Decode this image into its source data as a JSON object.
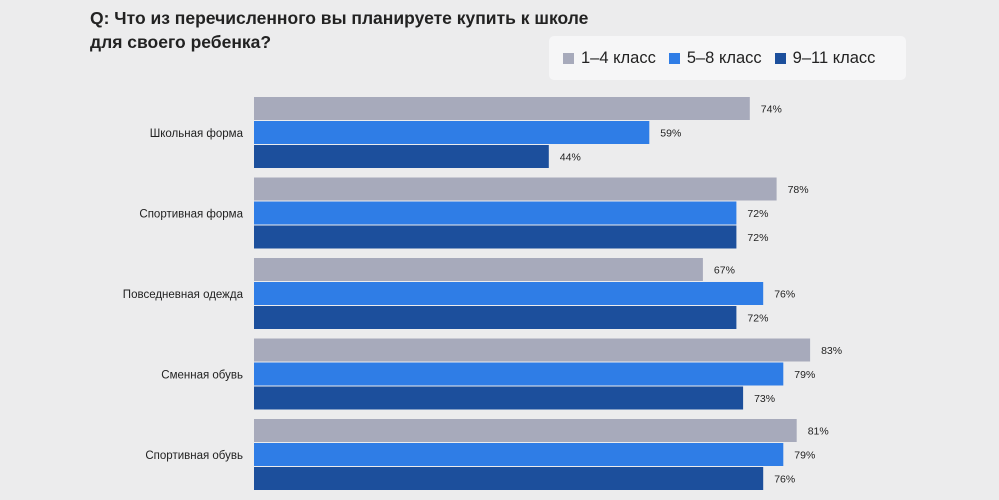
{
  "question": {
    "line1": "Q: Что из перечисленного вы планируете купить к школе",
    "line2": "для своего ребенка?"
  },
  "chart_data": {
    "type": "bar",
    "orientation": "horizontal",
    "title": "Q: Что из перечисленного вы планируете купить к школе для своего ребенка?",
    "categories": [
      "Школьная форма",
      "Спортивная форма",
      "Повседневная одежда",
      "Сменная обувь",
      "Спортивная обувь"
    ],
    "series": [
      {
        "name": "1–4 класс",
        "color": "#a7aabb",
        "values": [
          74,
          78,
          67,
          83,
          81
        ]
      },
      {
        "name": "5–8 класс",
        "color": "#2f7de6",
        "values": [
          59,
          72,
          76,
          79,
          79
        ]
      },
      {
        "name": "9–11 класс",
        "color": "#1c4f9c",
        "values": [
          44,
          72,
          72,
          73,
          76
        ]
      }
    ],
    "value_suffix": "%",
    "legend_position": "top-right",
    "grid": false,
    "xlim": [
      0,
      100
    ]
  }
}
